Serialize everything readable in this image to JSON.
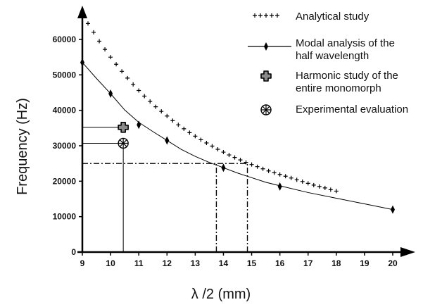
{
  "chart_data": {
    "type": "line",
    "xlabel": "λ /2 (mm)",
    "ylabel": "Frequency (Hz)",
    "xlim": [
      9,
      21.2
    ],
    "ylim": [
      0,
      70000
    ],
    "x_ticks": [
      9,
      10,
      11,
      12,
      13,
      14,
      15,
      16,
      17,
      18,
      19,
      20
    ],
    "y_ticks": [
      0,
      10000,
      20000,
      30000,
      40000,
      50000,
      60000
    ],
    "y_tick_labels": [
      "0",
      "10000",
      "20000",
      "30000",
      "40000",
      "50000",
      "60000"
    ],
    "grid": false,
    "legend_position": "top-right",
    "series": [
      {
        "name": "Analytical study",
        "marker": "plus",
        "x": [
          9.2,
          9.4,
          9.6,
          9.8,
          10.0,
          10.2,
          10.4,
          10.6,
          10.8,
          11.0,
          11.2,
          11.4,
          11.6,
          11.8,
          12.0,
          12.2,
          12.4,
          12.6,
          12.8,
          13.0,
          13.2,
          13.4,
          13.6,
          13.8,
          14.0,
          14.2,
          14.4,
          14.6,
          14.8,
          15.0,
          15.2,
          15.4,
          15.6,
          15.8,
          16.0,
          16.2,
          16.4,
          16.6,
          16.8,
          17.0,
          17.2,
          17.4,
          17.6,
          17.8,
          18.0
        ],
        "y": [
          64500,
          62000,
          59500,
          57200,
          55000,
          53000,
          51000,
          49100,
          47300,
          45600,
          44000,
          42500,
          41000,
          39700,
          38400,
          37100,
          35900,
          34800,
          33700,
          32700,
          31700,
          30800,
          29900,
          29000,
          28200,
          27400,
          26700,
          26000,
          25300,
          24700,
          24100,
          23500,
          22900,
          22400,
          21900,
          21400,
          20900,
          20400,
          19900,
          19400,
          18900,
          18500,
          18100,
          17600,
          17200
        ]
      },
      {
        "name": "Modal analysis of  the half wavelength",
        "marker": "diamond",
        "x": [
          9,
          10,
          11,
          12,
          14,
          16,
          20
        ],
        "y": [
          53500,
          44700,
          35900,
          31500,
          23800,
          18500,
          12000
        ]
      },
      {
        "name": "Harmonic study of the entire monomorph",
        "marker": "rounded-square",
        "x": [
          10.45
        ],
        "y": [
          35200
        ]
      },
      {
        "name": "Experimental evaluation",
        "marker": "asterisk-circle",
        "x": [
          10.45
        ],
        "y": [
          30700
        ]
      }
    ],
    "fitted_curve": {
      "x": [
        9,
        9.5,
        10,
        10.5,
        11,
        11.5,
        12,
        12.5,
        13,
        13.5,
        14,
        14.5,
        15,
        15.5,
        16,
        17,
        18,
        19,
        20
      ],
      "y": [
        53500,
        49000,
        44700,
        40100,
        36600,
        34000,
        31500,
        29000,
        27000,
        25300,
        23800,
        22300,
        21000,
        19700,
        18700,
        16800,
        15200,
        13600,
        12000
      ]
    },
    "reference_lines": [
      {
        "from": [
          9,
          35200
        ],
        "to": [
          10.45,
          35200
        ]
      },
      {
        "from": [
          9,
          30700
        ],
        "to": [
          10.45,
          30700
        ]
      },
      {
        "from": [
          10.45,
          0
        ],
        "to": [
          10.45,
          30700
        ]
      },
      {
        "from": [
          9,
          25000
        ],
        "to": [
          14.85,
          25000
        ],
        "dash": "dash-dot"
      },
      {
        "from": [
          13.75,
          0
        ],
        "to": [
          13.75,
          25000
        ],
        "dash": "dash-dot"
      },
      {
        "from": [
          14.85,
          0
        ],
        "to": [
          14.85,
          25000
        ],
        "dash": "dash-dot"
      }
    ],
    "legend": {
      "entries": [
        {
          "lines": [
            "Analytical study"
          ]
        },
        {
          "lines": [
            "Modal analysis of  the",
            "half wavelength"
          ]
        },
        {
          "lines": [
            "Harmonic study of the",
            "entire monomorph"
          ]
        },
        {
          "lines": [
            "Experimental evaluation"
          ]
        }
      ]
    }
  }
}
